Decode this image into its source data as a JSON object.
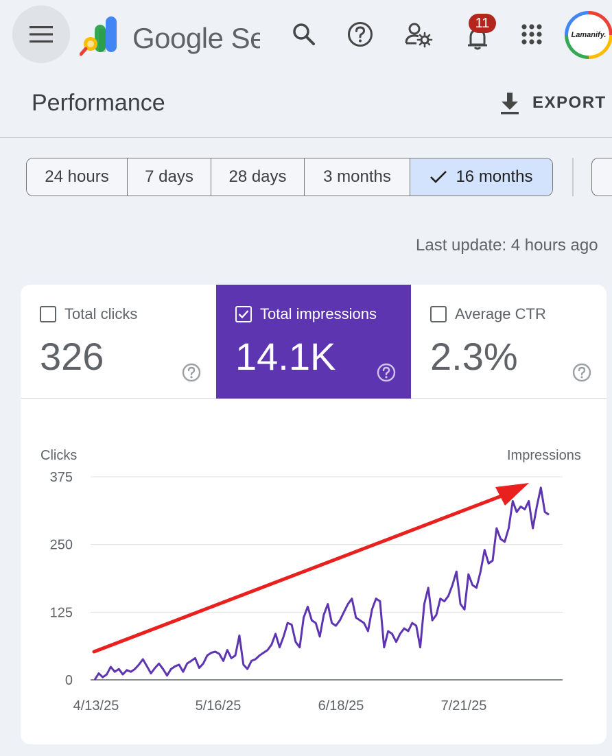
{
  "appbar": {
    "product_name": "Google Search Console",
    "notifications_count": "11",
    "avatar_text": "Lamanify."
  },
  "page": {
    "title": "Performance",
    "export_label": "EXPORT"
  },
  "date_range": {
    "options": [
      "24 hours",
      "7 days",
      "28 days",
      "3 months",
      "16 months"
    ],
    "selected": "16 months"
  },
  "last_update": "Last update: 4 hours ago",
  "metrics": [
    {
      "label": "Total clicks",
      "value": "326",
      "checked": false
    },
    {
      "label": "Total impressions",
      "value": "14.1K",
      "checked": true
    },
    {
      "label": "Average CTR",
      "value": "2.3%",
      "checked": false
    }
  ],
  "colors": {
    "impressions_series": "#5e35b1",
    "annotation_arrow": "#e8201e",
    "selected_chip": "#d3e3fd"
  },
  "chart_data": {
    "type": "line",
    "left_axis_title": "Clicks",
    "right_axis_title": "Impressions",
    "y_ticks": [
      0,
      125,
      250,
      375
    ],
    "ylim": [
      0,
      375
    ],
    "x_tick_labels": [
      "4/13/25",
      "5/16/25",
      "6/18/25",
      "7/21/25"
    ],
    "x_range": [
      "4/13/25",
      "8/10/25"
    ],
    "grid": true,
    "annotation": "trend-arrow",
    "series": [
      {
        "values": [
          0,
          12,
          5,
          10,
          24,
          15,
          20,
          10,
          18,
          15,
          20,
          28,
          38,
          25,
          12,
          22,
          30,
          20,
          8,
          20,
          25,
          28,
          15,
          30,
          35,
          40,
          22,
          30,
          45,
          50,
          52,
          48,
          35,
          55,
          40,
          45,
          82,
          28,
          20,
          35,
          38,
          45,
          50,
          55,
          65,
          85,
          60,
          80,
          105,
          102,
          70,
          60,
          115,
          135,
          110,
          105,
          80,
          120,
          140,
          105,
          100,
          110,
          125,
          140,
          150,
          115,
          110,
          105,
          90,
          130,
          150,
          145,
          60,
          90,
          85,
          70,
          85,
          95,
          90,
          105,
          100,
          60,
          140,
          170,
          110,
          120,
          150,
          145,
          155,
          175,
          200,
          140,
          130,
          195,
          175,
          170,
          200,
          240,
          215,
          220,
          280,
          260,
          255,
          280,
          330,
          310,
          320,
          315,
          330,
          280,
          320,
          355,
          310,
          305
        ]
      }
    ]
  }
}
